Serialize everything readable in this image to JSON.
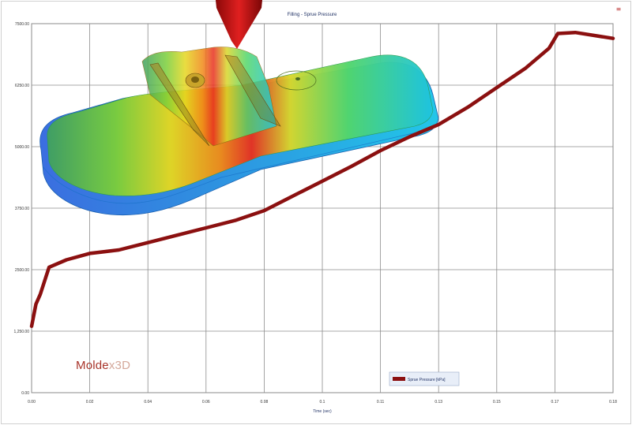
{
  "chart_data": {
    "type": "line",
    "title": "Filling - Sprue Pressure",
    "xlabel": "Time (sec)",
    "ylabel": "",
    "xlim": [
      0.0,
      0.2
    ],
    "ylim": [
      0,
      7500
    ],
    "x_ticks": [
      "0.00",
      "0.02",
      "0.04",
      "0.06",
      "0.08",
      "0.1",
      "0.11",
      "0.13",
      "0.15",
      "0.17",
      "0.18"
    ],
    "y_ticks": [
      "0.00",
      "1,250.00",
      "2500.00",
      "3750.00",
      "5000.00",
      "6250.00",
      "7500.00"
    ],
    "grid": true,
    "legend_position": "bottom-right",
    "series": [
      {
        "name": "Sprue Pressure [kPa]",
        "color": "#8b1010",
        "x": [
          0.0,
          0.0015,
          0.003,
          0.006,
          0.012,
          0.02,
          0.03,
          0.04,
          0.05,
          0.06,
          0.07,
          0.08,
          0.09,
          0.1,
          0.11,
          0.12,
          0.13,
          0.14,
          0.15,
          0.16,
          0.17,
          0.178,
          0.181,
          0.187,
          0.2
        ],
        "y": [
          1350,
          1800,
          2000,
          2550,
          2700,
          2830,
          2900,
          3050,
          3200,
          3350,
          3500,
          3700,
          4000,
          4300,
          4600,
          4920,
          5200,
          5450,
          5800,
          6200,
          6600,
          7000,
          7300,
          7320,
          7200
        ]
      }
    ]
  },
  "overlay": {
    "picture": "mold-fill-temperature-part",
    "brand_part1": "Molde",
    "brand_part2": "x3D"
  },
  "toolbar": {
    "menu_icon": "list-menu-icon"
  }
}
